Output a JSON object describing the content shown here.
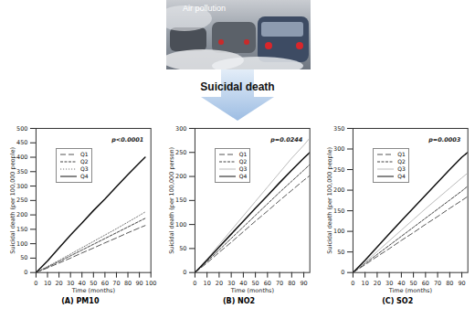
{
  "header": {
    "image_label": "Air pollution",
    "arrow_label": "Suicidal death"
  },
  "chart_data": [
    {
      "type": "line",
      "title": "(A) PM10",
      "x_label": "Time (months)",
      "y_label": "Suicidal death (per 100,000 people)",
      "annotation": "p<0.0001",
      "legend": "upper left",
      "grid": false,
      "xlim": [
        0,
        100
      ],
      "xticks": [
        0,
        10,
        20,
        30,
        40,
        50,
        60,
        70,
        80,
        90,
        100
      ],
      "ylim": [
        0,
        500
      ],
      "yticks": [
        0,
        50,
        100,
        150,
        200,
        250,
        300,
        350,
        400,
        450,
        500
      ],
      "x": [
        0,
        10,
        20,
        30,
        40,
        50,
        60,
        70,
        80,
        90,
        95
      ],
      "series": [
        {
          "name": "Q1",
          "color": "#555555",
          "line_style": "long-dashed",
          "values": [
            0,
            16,
            33,
            50,
            68,
            85,
            103,
            120,
            138,
            155,
            163
          ]
        },
        {
          "name": "Q2",
          "color": "#444444",
          "line_style": "dashed",
          "values": [
            0,
            19,
            38,
            58,
            78,
            98,
            118,
            138,
            158,
            178,
            188
          ]
        },
        {
          "name": "Q3",
          "color": "#777777",
          "line_style": "dotted",
          "values": [
            0,
            21,
            42,
            64,
            86,
            108,
            130,
            152,
            175,
            198,
            210
          ]
        },
        {
          "name": "Q4",
          "color": "#111111",
          "line_style": "solid",
          "values": [
            0,
            40,
            85,
            130,
            172,
            215,
            255,
            298,
            340,
            380,
            400
          ]
        }
      ]
    },
    {
      "type": "line",
      "title": "(B) NO2",
      "x_label": "Time (months)",
      "y_label": "Suicidal death (per 100,000 person)",
      "annotation": "p=0.0244",
      "legend": "upper left",
      "grid": false,
      "xlim": [
        0,
        95
      ],
      "xticks": [
        0,
        10,
        20,
        30,
        40,
        50,
        60,
        70,
        80,
        90
      ],
      "ylim": [
        0,
        300
      ],
      "yticks": [
        0,
        50,
        100,
        150,
        200,
        250,
        300
      ],
      "x": [
        0,
        10,
        20,
        30,
        40,
        50,
        60,
        70,
        80,
        90,
        95
      ],
      "series": [
        {
          "name": "Q1",
          "color": "#555555",
          "line_style": "long-dashed",
          "values": [
            0,
            20,
            42,
            63,
            85,
            107,
            128,
            150,
            171,
            192,
            202
          ]
        },
        {
          "name": "Q2",
          "color": "#444444",
          "line_style": "dashed",
          "values": [
            0,
            23,
            47,
            71,
            95,
            119,
            143,
            167,
            190,
            213,
            225
          ]
        },
        {
          "name": "Q3",
          "color": "#bbbbbb",
          "line_style": "solid",
          "values": [
            0,
            28,
            58,
            88,
            118,
            148,
            178,
            208,
            238,
            265,
            280
          ]
        },
        {
          "name": "Q4",
          "color": "#111111",
          "line_style": "solid",
          "values": [
            0,
            26,
            53,
            80,
            107,
            134,
            160,
            187,
            213,
            238,
            250
          ]
        }
      ]
    },
    {
      "type": "line",
      "title": "(C) SO2",
      "x_label": "Time (months)",
      "y_label": "Suicidal death (per 100,000 people)",
      "annotation": "p=0.0003",
      "legend": "upper left",
      "grid": false,
      "xlim": [
        0,
        95
      ],
      "xticks": [
        0,
        10,
        20,
        30,
        40,
        50,
        60,
        70,
        80,
        90
      ],
      "ylim": [
        0,
        350
      ],
      "yticks": [
        0,
        50,
        100,
        150,
        200,
        250,
        300,
        350
      ],
      "x": [
        0,
        10,
        20,
        30,
        40,
        50,
        60,
        70,
        80,
        90,
        95
      ],
      "series": [
        {
          "name": "Q1",
          "color": "#555555",
          "line_style": "long-dashed",
          "values": [
            0,
            19,
            39,
            58,
            78,
            97,
            117,
            136,
            156,
            175,
            185
          ]
        },
        {
          "name": "Q2",
          "color": "#444444",
          "line_style": "dashed",
          "values": [
            0,
            22,
            44,
            66,
            88,
            110,
            132,
            154,
            176,
            198,
            210
          ]
        },
        {
          "name": "Q3",
          "color": "#bbbbbb",
          "line_style": "solid",
          "values": [
            0,
            25,
            51,
            77,
            103,
            129,
            155,
            180,
            205,
            230,
            242
          ]
        },
        {
          "name": "Q4",
          "color": "#111111",
          "line_style": "solid",
          "values": [
            0,
            30,
            62,
            94,
            126,
            157,
            188,
            219,
            250,
            280,
            292
          ]
        }
      ]
    }
  ]
}
